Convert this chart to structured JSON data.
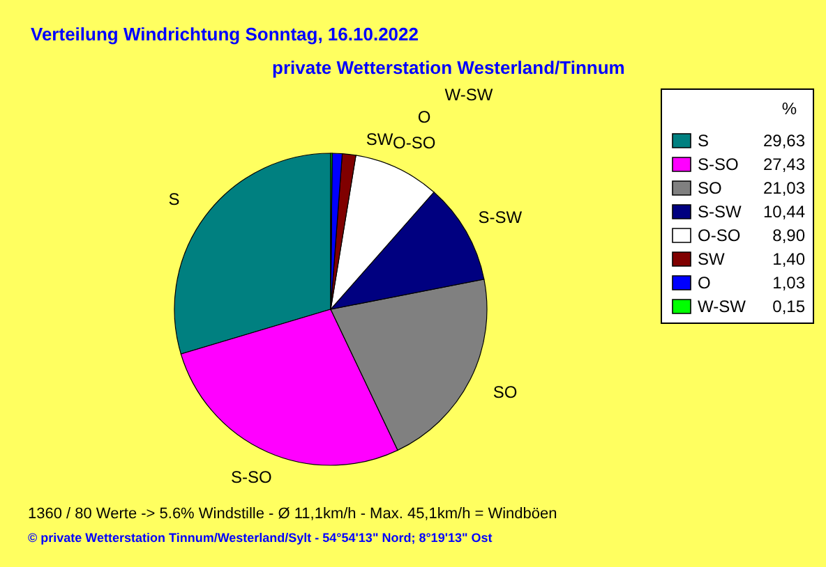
{
  "chart_data": {
    "type": "pie",
    "title": "Verteilung Windrichtung   Sonntag, 16.10.2022",
    "subtitle": "private Wetterstation Westerland/Tinnum",
    "categories": [
      "S",
      "S-SO",
      "SO",
      "S-SW",
      "O-SO",
      "SW",
      "O",
      "W-SW"
    ],
    "values": [
      29.63,
      27.43,
      21.03,
      10.44,
      8.9,
      1.4,
      1.03,
      0.15
    ],
    "value_labels": [
      "29,63",
      "27,43",
      "21,03",
      "10,44",
      "8,90",
      "1,40",
      "1,03",
      "0,15"
    ],
    "colors": [
      "#008080",
      "#ff00ff",
      "#808080",
      "#000080",
      "#ffffff",
      "#800000",
      "#0000ff",
      "#00ff00"
    ],
    "legend": "top right",
    "legend_title": "%",
    "annotations": [
      "1360 / 80 Werte  -> 5.6% Windstille   -   Ø 11,1km/h  -  Max. 45,1km/h = Windböen",
      "© private Wetterstation Tinnum/Westerland/Sylt   -   54°54'13\" Nord; 8°19'13\" Ost"
    ]
  }
}
